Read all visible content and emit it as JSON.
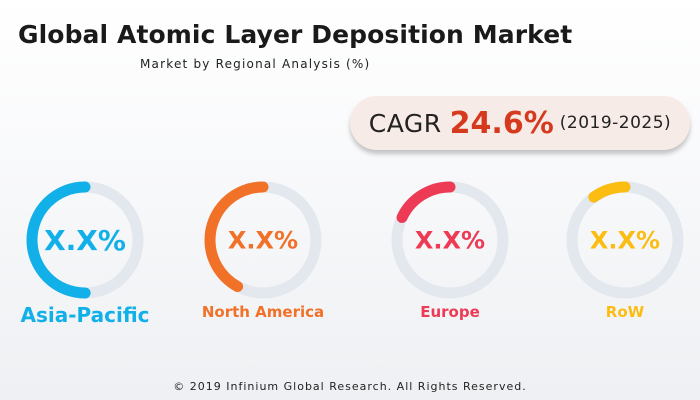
{
  "header": {
    "title": "Global Atomic Layer Deposition Market",
    "subtitle": "Market by Regional Analysis (%)"
  },
  "cagr": {
    "label": "CAGR",
    "value": "24.6%",
    "period": "(2019-2025)"
  },
  "chart_data": {
    "type": "pie",
    "title": "Global Atomic Layer Deposition Market",
    "subtitle": "Market by Regional Analysis (%)",
    "track_color": "#e2e8ee",
    "segments": [
      {
        "name": "Asia-Pacific",
        "value_label": "X.X%",
        "share": 0.5,
        "color": "#12b0e8"
      },
      {
        "name": "North America",
        "value_label": "X.X%",
        "share": 0.42,
        "color": "#f27128"
      },
      {
        "name": "Europe",
        "value_label": "X.X%",
        "share": 0.18,
        "color": "#ee3b55"
      },
      {
        "name": "RoW",
        "value_label": "X.X%",
        "share": 0.1,
        "color": "#fcbd12"
      }
    ]
  },
  "footer": {
    "copyright": "© 2019 Infinium Global Research. All Rights Reserved."
  }
}
